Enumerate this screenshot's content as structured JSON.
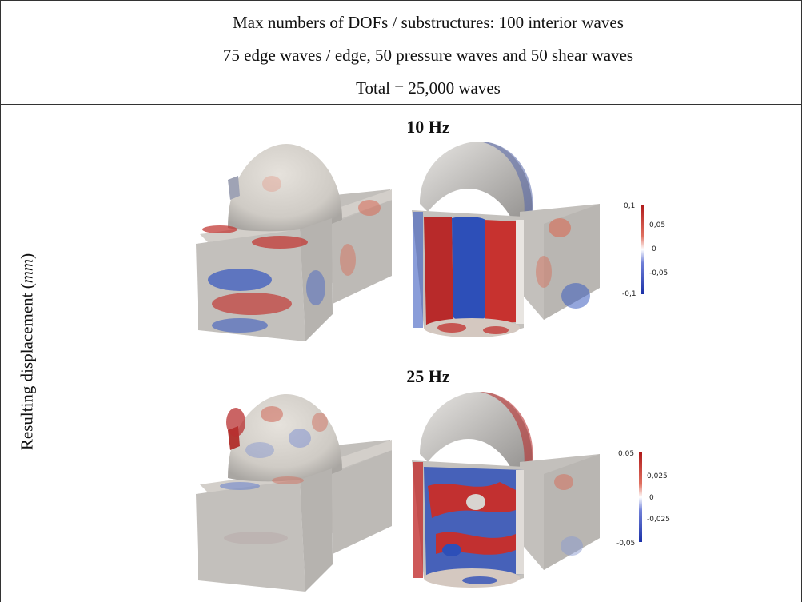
{
  "header": {
    "line1": "Max numbers of DOFs / substructures: 100 interior waves",
    "line2": "75 edge waves / edge, 50 pressure waves and 50 shear waves",
    "line3": "Total = 25,000 waves"
  },
  "row_label": {
    "text": "Resulting displacement (",
    "unit": "mm",
    "close": ")"
  },
  "panels": [
    {
      "title": "10 Hz",
      "colorbar": {
        "max": "0,1",
        "ticks": [
          "0,05",
          "0",
          "-0,05"
        ],
        "min": "-0,1"
      }
    },
    {
      "title": "25 Hz",
      "colorbar": {
        "max": "0,05",
        "ticks": [
          "0,025",
          "0",
          "-0,025"
        ],
        "min": "-0,05"
      }
    }
  ],
  "colors": {
    "red": "#c0282a",
    "blue": "#2f4fb8",
    "neutral": "#c6c3bf",
    "grid": "#333333"
  }
}
